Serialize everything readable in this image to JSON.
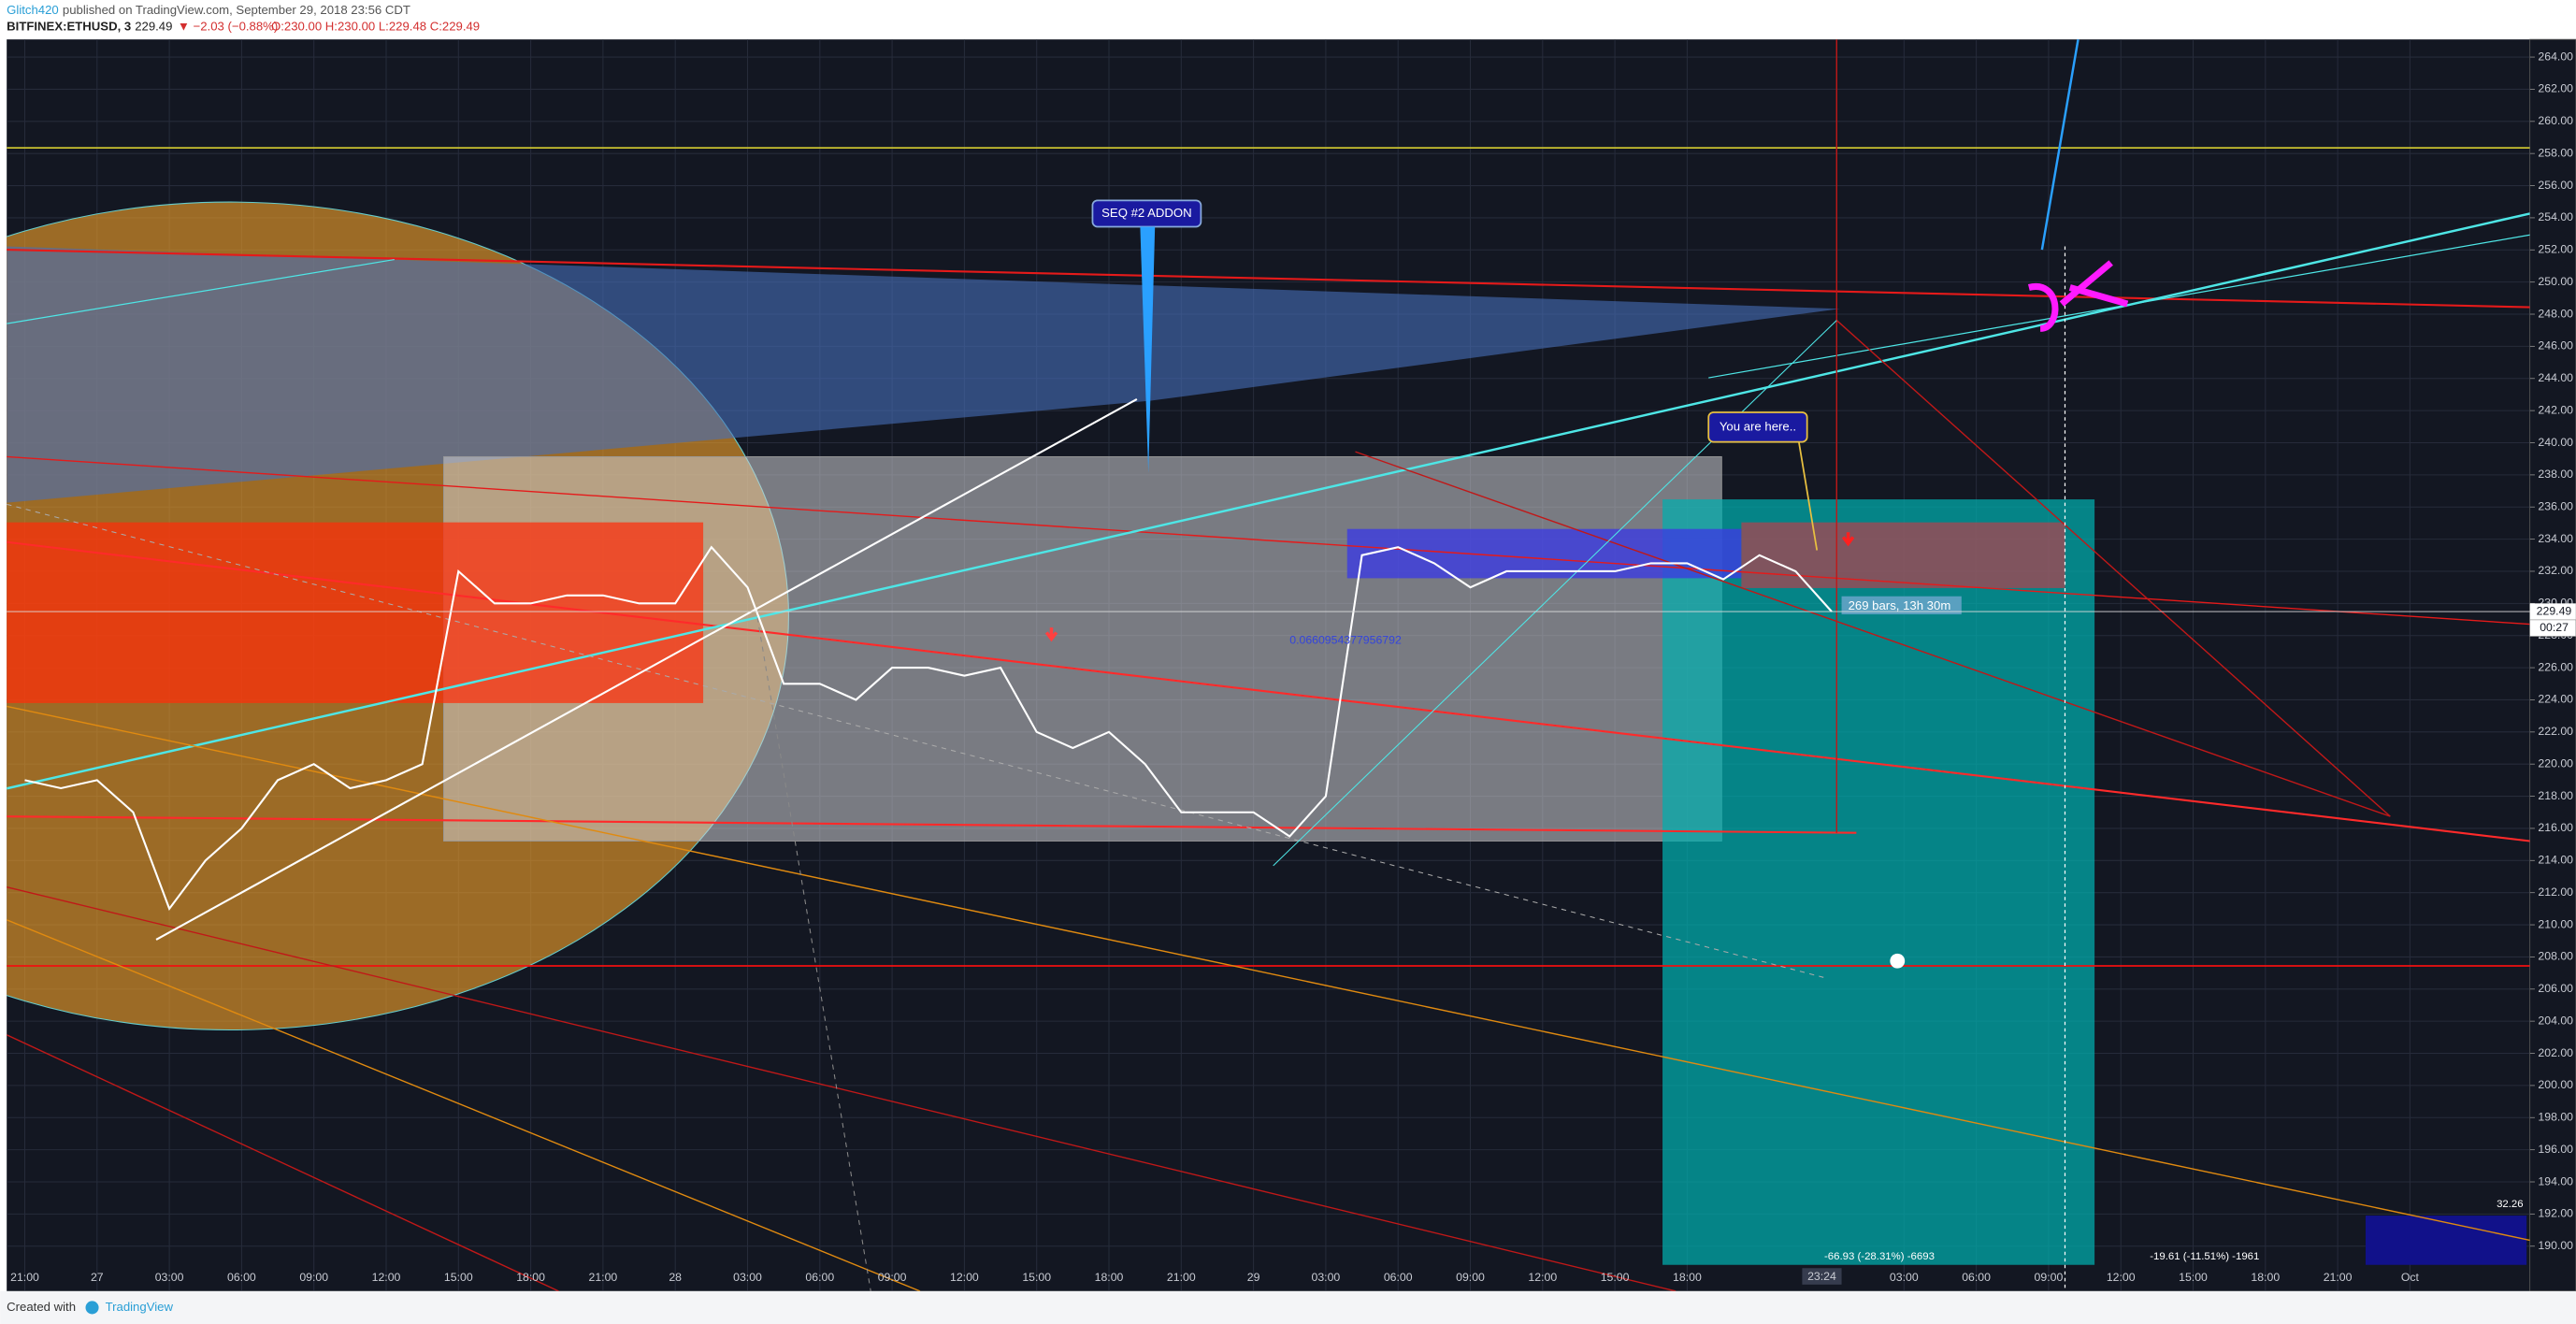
{
  "header": {
    "author": "Glitch420",
    "published": "published on TradingView.com, September 29, 2018 23:56 CDT",
    "symbol": "BITFINEX:ETHUSD, 3",
    "last": "229.49",
    "change": "▼ −2.03 (−0.88%)",
    "ohlc": "O:230.00 H:230.00 L:229.48 C:229.49"
  },
  "chart_data": {
    "type": "line",
    "categories": [
      "21:00",
      null,
      "27",
      null,
      "03:00",
      null,
      "06:00",
      null,
      "09:00",
      null,
      "12:00",
      null,
      "15:00",
      null,
      "18:00",
      null,
      "21:00",
      null,
      "28",
      null,
      "03:00",
      null,
      "06:00",
      null,
      "09:00",
      null,
      "12:00",
      null,
      "15:00",
      null,
      "18:00",
      null,
      "21:00",
      null,
      "29",
      null,
      "03:00",
      null,
      "06:00",
      null,
      "09:00",
      null,
      "12:00",
      null,
      "15:00",
      null,
      "18:00",
      null,
      null,
      null,
      null,
      null,
      "03:00",
      null,
      "06:00",
      null,
      "09:00",
      null,
      "12:00",
      null,
      "15:00",
      null,
      "18:00",
      null,
      "21:00",
      null,
      "Oct"
    ],
    "series": [
      {
        "color": "#ffffff",
        "values": [
          219,
          218.5,
          219,
          217,
          211,
          214,
          216,
          219,
          220,
          218.5,
          219,
          220,
          232,
          230,
          230,
          230.5,
          230.5,
          230,
          230,
          233.5,
          231,
          225,
          225,
          224,
          226,
          226,
          225.5,
          226,
          222,
          221,
          222,
          220,
          217,
          217,
          217,
          215.5,
          218,
          233,
          233.5,
          232.5,
          231,
          232,
          232,
          232,
          232,
          232.5,
          232.5,
          231.5,
          233,
          232,
          229.49,
          null,
          null,
          null,
          null,
          null,
          null,
          null,
          null,
          null,
          null,
          null,
          null,
          null,
          null,
          null,
          null
        ]
      }
    ],
    "ylim": [
      187.2,
      265.1
    ],
    "yticks": [
      {
        "value": 190,
        "label": "190.00"
      },
      {
        "value": 192,
        "label": "192.00"
      },
      {
        "value": 194,
        "label": "194.00"
      },
      {
        "value": 196,
        "label": "196.00"
      },
      {
        "value": 198,
        "label": "198.00"
      },
      {
        "value": 200,
        "label": "200.00"
      },
      {
        "value": 202,
        "label": "202.00"
      },
      {
        "value": 204,
        "label": "204.00"
      },
      {
        "value": 206,
        "label": "206.00"
      },
      {
        "value": 208,
        "label": "208.00"
      },
      {
        "value": 210,
        "label": "210.00"
      },
      {
        "value": 212,
        "label": "212.00"
      },
      {
        "value": 214,
        "label": "214.00"
      },
      {
        "value": 216,
        "label": "216.00"
      },
      {
        "value": 218,
        "label": "218.00"
      },
      {
        "value": 220,
        "label": "220.00"
      },
      {
        "value": 222,
        "label": "222.00"
      },
      {
        "value": 224,
        "label": "224.00"
      },
      {
        "value": 226,
        "label": "226.00"
      },
      {
        "value": 228,
        "label": "228.00"
      },
      {
        "value": 230,
        "label": "230.00"
      },
      {
        "value": 232,
        "label": "232.00"
      },
      {
        "value": 234,
        "label": "234.00"
      },
      {
        "value": 236,
        "label": "236.00"
      },
      {
        "value": 238,
        "label": "238.00"
      },
      {
        "value": 240,
        "label": "240.00"
      },
      {
        "value": 242,
        "label": "242.00"
      },
      {
        "value": 244,
        "label": "244.00"
      },
      {
        "value": 246,
        "label": "246.00"
      },
      {
        "value": 248,
        "label": "248.00"
      },
      {
        "value": 250,
        "label": "250.00"
      },
      {
        "value": 252,
        "label": "252.00"
      },
      {
        "value": 254,
        "label": "254.00"
      },
      {
        "value": 256,
        "label": "256.00"
      },
      {
        "value": 258,
        "label": "258.00"
      },
      {
        "value": 260,
        "label": "260.00"
      },
      {
        "value": 262,
        "label": "262.00"
      },
      {
        "value": 264,
        "label": "264.00"
      }
    ],
    "grid": true,
    "last_price_label": "229.49",
    "countdown": "00:27",
    "crosshair_time": "23:24",
    "annotations": {
      "seq": "SEQ #2 ADDON",
      "here": "You are here..",
      "bars": "269 bars, 13h 30m",
      "fib": "0.0660954377956792",
      "loss1": "-66.93 (-28.31%) -6693",
      "loss2": "-19.61 (-11.51%) -1961",
      "vol": "32.26"
    }
  },
  "footer": {
    "created": "Created with",
    "brand": "TradingView"
  }
}
